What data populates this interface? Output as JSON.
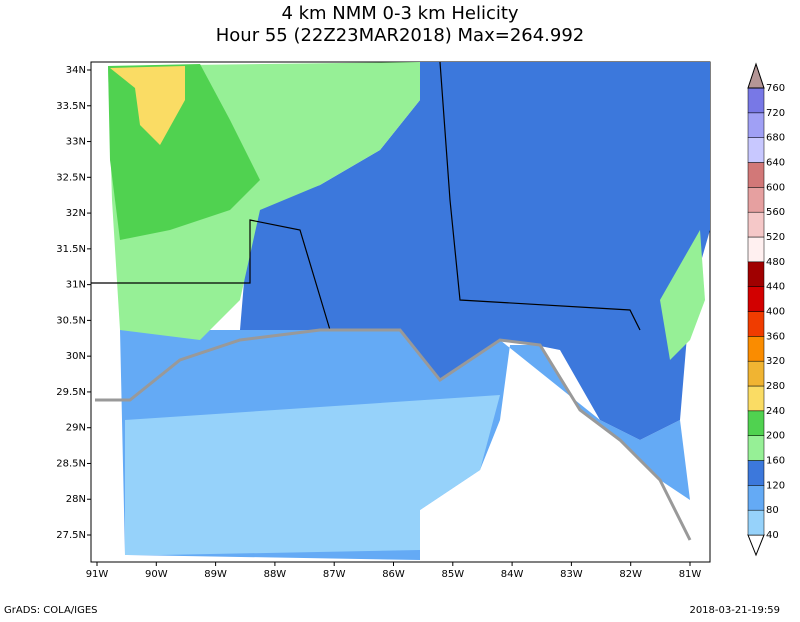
{
  "title": "4 km NMM 0-3 km Helicity",
  "subtitle": "Hour 55 (22Z23MAR2018) Max=264.992",
  "lat_labels": [
    "34N",
    "33.5N",
    "33N",
    "32.5N",
    "32N",
    "31.5N",
    "31N",
    "30.5N",
    "30N",
    "29.5N",
    "29N",
    "28.5N",
    "28N",
    "27.5N"
  ],
  "lon_labels": [
    "91W",
    "90W",
    "89W",
    "88W",
    "87W",
    "86W",
    "85W",
    "84W",
    "83W",
    "82W",
    "81W"
  ],
  "colorbar": {
    "levels": [
      40,
      80,
      120,
      160,
      200,
      240,
      280,
      320,
      360,
      400,
      440,
      480,
      520,
      560,
      600,
      640,
      680,
      720,
      760
    ],
    "colors": [
      "#ffffff",
      "#96d2fa",
      "#64aaf5",
      "#3c78dc",
      "#96f096",
      "#50d250",
      "#fadc64",
      "#f0b432",
      "#fa8c00",
      "#f03c00",
      "#d20000",
      "#a00000",
      "#fff0f0",
      "#f5c8c8",
      "#e6a0a0",
      "#d27878",
      "#c8c8ff",
      "#a0a0f5",
      "#7878e6",
      "#b49696"
    ]
  },
  "footer": {
    "left": "GrADS: COLA/IGES",
    "right": "2018-03-21-19:59"
  }
}
